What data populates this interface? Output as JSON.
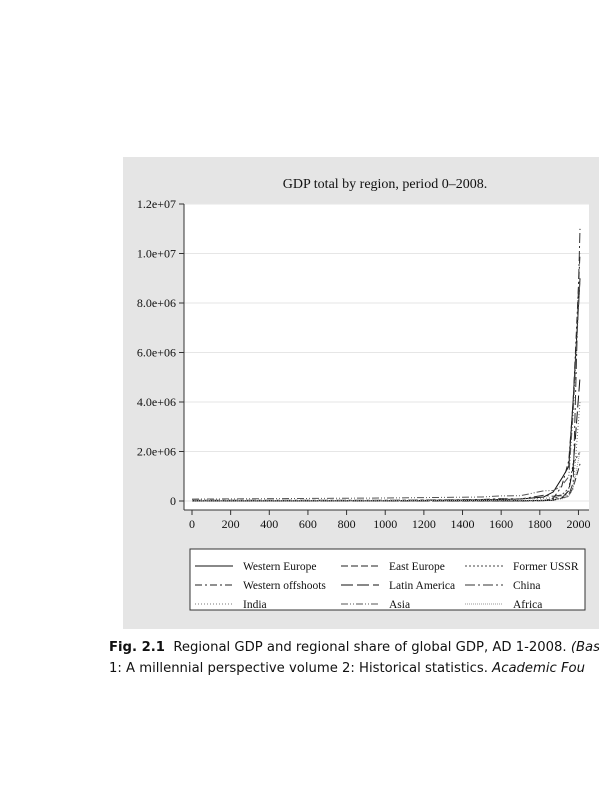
{
  "chart_data": {
    "type": "line",
    "title": "GDP total by region, period 0–2008.",
    "x_ticks": [
      "0",
      "200",
      "400",
      "600",
      "800",
      "1000",
      "1200",
      "1400",
      "1600",
      "1800",
      "2000"
    ],
    "y_ticks": [
      "0",
      "2.0e+06",
      "4.0e+06",
      "6.0e+06",
      "8.0e+06",
      "1.0e+07",
      "1.2e+07"
    ],
    "xlim": [
      0,
      2008
    ],
    "ylim": [
      0,
      12000000
    ],
    "grid": true,
    "legend_position": "bottom",
    "x": [
      0,
      1000,
      1500,
      1600,
      1700,
      1820,
      1870,
      1913,
      1950,
      1973,
      2008
    ],
    "series": [
      {
        "name": "Western Europe",
        "style": "solid",
        "values": [
          11000,
          11000,
          44000,
          60000,
          81000,
          160000,
          367000,
          902000,
          1396000,
          4097000,
          9000000
        ]
      },
      {
        "name": "East Europe",
        "style": "dash",
        "values": [
          2000,
          6000,
          12000,
          14000,
          18000,
          24000,
          50000,
          122000,
          186000,
          550000,
          1500000
        ]
      },
      {
        "name": "Former USSR",
        "style": "dot",
        "values": [
          1500,
          3000,
          9000,
          11000,
          17000,
          38000,
          84000,
          233000,
          510000,
          1513000,
          2000000
        ]
      },
      {
        "name": "Western offshoots",
        "style": "dashdot",
        "values": [
          500,
          800,
          1000,
          1000,
          1000,
          14000,
          112000,
          582000,
          1635000,
          4059000,
          10000000
        ]
      },
      {
        "name": "Latin America",
        "style": "longdash",
        "values": [
          2000,
          5000,
          7000,
          4000,
          6000,
          15000,
          27000,
          119000,
          416000,
          1390000,
          5000000
        ]
      },
      {
        "name": "China",
        "style": "longdashdot",
        "values": [
          27000,
          27000,
          62000,
          96000,
          83000,
          229000,
          190000,
          241000,
          245000,
          740000,
          11000000
        ]
      },
      {
        "name": "India",
        "style": "finedot",
        "values": [
          34000,
          34000,
          60000,
          74000,
          91000,
          111000,
          135000,
          204000,
          222000,
          495000,
          4000000
        ]
      },
      {
        "name": "Asia",
        "style": "dashdotdot",
        "values": [
          77000,
          121000,
          162000,
          206000,
          215000,
          412000,
          421000,
          608000,
          985000,
          3600000,
          9000000
        ]
      },
      {
        "name": "Africa",
        "style": "sparsedot",
        "values": [
          7000,
          14000,
          19000,
          23000,
          25000,
          31000,
          45000,
          79000,
          203000,
          549000,
          2000000
        ]
      }
    ]
  },
  "caption": {
    "label": "Fig. 2.1",
    "line1_text": "Regional GDP and regional share of global GDP, AD 1-2008. ",
    "line1_italic": "(Bas",
    "line2_text": "1: A millennial perspective volume 2: Historical statistics. ",
    "line2_italic": "Academic Fou"
  }
}
